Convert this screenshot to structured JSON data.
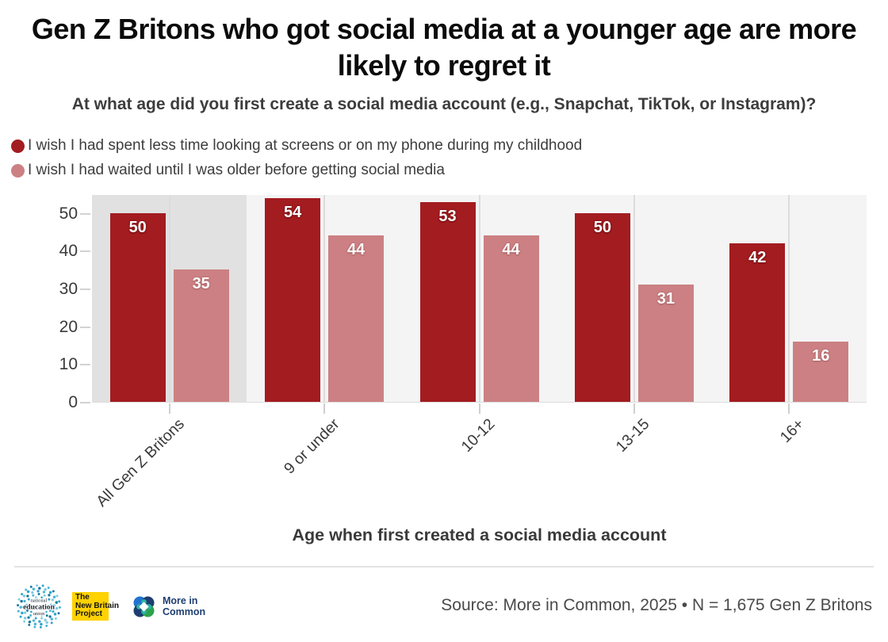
{
  "header": {
    "title": "Gen Z Britons who got social media at a younger age are more likely to regret it",
    "subtitle": "At what age did you first create a social media account (e.g., Snapchat, TikTok, or Instagram)?"
  },
  "chart_data": {
    "type": "bar",
    "categories": [
      "All Gen Z Britons",
      "9 or under",
      "10-12",
      "13-15",
      "16+"
    ],
    "series": [
      {
        "name": "I wish I had spent less time looking at screens or on my phone during my childhood",
        "color": "#a31c20",
        "values": [
          50,
          54,
          53,
          50,
          42
        ]
      },
      {
        "name": "I wish I had waited until I was older before getting social media",
        "color": "#cc8083",
        "values": [
          35,
          44,
          44,
          31,
          16
        ]
      }
    ],
    "title": "Gen Z Britons who got social media at a younger age are more likely to regret it",
    "xlabel": "Age when first created a social media account",
    "ylabel": "",
    "ylim": [
      0,
      55
    ],
    "yticks": [
      0,
      10,
      20,
      30,
      40,
      50
    ],
    "grid": "vertical-category-gridlines",
    "legend_position": "top-left",
    "highlight_category": "All Gen Z Britons",
    "plot_bg": "#f4f4f4",
    "highlight_bg": "#e1e1e1"
  },
  "footer": {
    "source": "Source: More in Common, 2025 • N = 1,675 Gen Z Britons",
    "logos": [
      {
        "name": "National Education Union",
        "lines": [
          "national",
          "education",
          "union"
        ],
        "accent": "#2fa3cb"
      },
      {
        "name": "The New Britain Project",
        "lines": [
          "The",
          "New Britain",
          "Project"
        ],
        "accent": "#ffd200"
      },
      {
        "name": "More in Common",
        "lines": [
          "More in",
          "Common"
        ],
        "accent": "#1d3e70"
      }
    ]
  }
}
